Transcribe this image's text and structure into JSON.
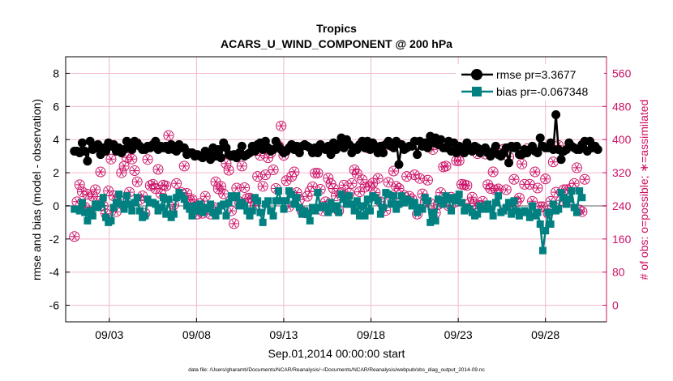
{
  "chart_data": {
    "type": "line",
    "title": "Tropics",
    "subtitle": "ACARS_U_WIND_COMPONENT @ 200 hPa",
    "xlabel": "Sep.01,2014 00:00:00 start",
    "ylabel_left": "rmse and bias (model - observation)",
    "ylabel_right": "# of obs: o=possible; ∗=assimilated",
    "footer": "data file: /Users/gharamti/Documents/NCAR/Reanalysis/~/Documents/NCAR/Reanalysis/webpub/obs_diag_output_2014-09.nc",
    "xlim": [
      0.5,
      31.5
    ],
    "x_ticks": [
      3,
      8,
      13,
      18,
      23,
      28
    ],
    "x_tick_labels": [
      "09/03",
      "09/08",
      "09/13",
      "09/18",
      "09/23",
      "09/28"
    ],
    "ylim_left": [
      -7,
      9
    ],
    "y_ticks_left": [
      -6,
      -4,
      -2,
      0,
      2,
      4,
      6,
      8
    ],
    "ylim_right": [
      -40,
      600
    ],
    "y_ticks_right": [
      0,
      80,
      160,
      240,
      320,
      400,
      480,
      560
    ],
    "legend": [
      {
        "label": "rmse pr=3.3677",
        "color": "#000000"
      },
      {
        "label": "bias pr=-0.067348",
        "color": "#008080"
      }
    ],
    "colors": {
      "rmse": "#000000",
      "bias": "#008080",
      "obs": "#cc1166",
      "grid": "#f0b8cc",
      "zero": "#b0b0b0"
    },
    "series": [
      {
        "name": "rmse",
        "axis": "left",
        "values": [
          3.3,
          3.3,
          3.2,
          3.8,
          3.3,
          2.7,
          3.9,
          3.4,
          3.5,
          3.7,
          3.1,
          3.5,
          3.3,
          3.8,
          3.6,
          3.7,
          3.3,
          3.5,
          3.2,
          3.4,
          3.9,
          3.6,
          3.4,
          3.9,
          3.8,
          3.6,
          3.4,
          3.4,
          3.6,
          3.5,
          3.7,
          3.9,
          3.4,
          3.6,
          3.5,
          3.6,
          3.4,
          3.7,
          3.4,
          3.3,
          3.7,
          3.5,
          3.5,
          3.1,
          3.2,
          3.2,
          3.0,
          3.1,
          3.0,
          2.9,
          3.3,
          3.1,
          2.8,
          3.5,
          3.0,
          3.4,
          2.9,
          3.8,
          3.5,
          3.1,
          3.0,
          3.1,
          2.9,
          3.2,
          3.6,
          3.0,
          3.1,
          3.2,
          3.6,
          3.3,
          3.7,
          3.8,
          3.4,
          3.9,
          3.5,
          3.3,
          3.4,
          3.9,
          3.6,
          3.4,
          3.2,
          3.3,
          3.5,
          3.7,
          3.4,
          3.6,
          3.2,
          3.6,
          3.7,
          3.6,
          3.5,
          3.2,
          3.5,
          3.2,
          3.7,
          3.5,
          3.4,
          3.6,
          3.1,
          3.8,
          3.4,
          3.7,
          4.1,
          3.5,
          4.0,
          3.7,
          3.2,
          3.5,
          3.4,
          3.7,
          3.9,
          3.5,
          3.9,
          3.4,
          3.8,
          3.6,
          3.2,
          3.6,
          3.2,
          3.7,
          3.9,
          3.6,
          3.5,
          3.9,
          2.5,
          3.7,
          3.4,
          3.5,
          3.6,
          3.6,
          3.9,
          3.1,
          3.9,
          3.6,
          3.8,
          3.5,
          4.2,
          3.8,
          4.1,
          3.7,
          4.0,
          3.5,
          3.5,
          3.9,
          3.3,
          3.8,
          3.2,
          3.6,
          3.4,
          3.2,
          3.8,
          3.5,
          3.3,
          3.6,
          3.5,
          3.2,
          3.4,
          3.5,
          3.2,
          3.0,
          3.3,
          3.6,
          3.1,
          3.0,
          3.2,
          3.5,
          2.6,
          3.6,
          3.5,
          3.6,
          3.1,
          3.1,
          3.4,
          3.2,
          3.4,
          3.6,
          3.3,
          3.2,
          4.1,
          3.6,
          3.5,
          3.5,
          3.8,
          3.4,
          5.5,
          3.4,
          2.8,
          3.3,
          3.4,
          3.8,
          3.6,
          3.5,
          3.4,
          3.4,
          3.7,
          3.9,
          3.3,
          3.9,
          3.5,
          3.6,
          3.4
        ]
      },
      {
        "name": "bias",
        "axis": "left",
        "values": [
          -0.2,
          -0.2,
          -0.3,
          0.2,
          -0.4,
          -0.9,
          -0.3,
          -0.6,
          0.1,
          -0.1,
          0.1,
          0.5,
          -0.7,
          -1.0,
          -0.9,
          -0.1,
          0.2,
          0.7,
          0.1,
          -0.2,
          0.6,
          0.1,
          -0.3,
          0.2,
          0.5,
          -0.3,
          -0.7,
          -0.6,
          0.4,
          0.2,
          0.2,
          0.1,
          -0.3,
          -0.1,
          0.5,
          -0.5,
          0.4,
          -0.7,
          -0.5,
          0.5,
          0.8,
          0.6,
          0.4,
          0.0,
          -0.2,
          -0.6,
          0.0,
          -0.3,
          0.1,
          -0.4,
          -0.1,
          -0.2,
          0.1,
          -0.4,
          -0.6,
          -0.3,
          0.0,
          0.1,
          -0.6,
          0.2,
          0.6,
          0.5,
          0.6,
          0.0,
          0.2,
          0.0,
          -0.3,
          -0.6,
          -0.3,
          0.5,
          0.3,
          -0.4,
          -1.0,
          0.1,
          0.3,
          -0.3,
          -0.6,
          0.3,
          0.9,
          0.3,
          -0.2,
          0.3,
          0.9,
          0.7,
          0.1,
          0.5,
          -0.1,
          -0.5,
          -0.3,
          -0.5,
          -0.9,
          -0.1,
          -0.3,
          0.8,
          -0.1,
          0.0,
          -0.1,
          -0.4,
          0.2,
          -0.2,
          0.0,
          -0.4,
          0.7,
          0.4,
          0.1,
          0.6,
          0.1,
          -0.3,
          0.3,
          -0.6,
          0.0,
          -0.6,
          0.4,
          -0.3,
          0.6,
          0.5,
          0.3,
          -0.5,
          -0.1,
          0.8,
          0.7,
          0.1,
          0.6,
          -0.2,
          0.1,
          0.6,
          0.2,
          0.4,
          0.3,
          0.0,
          0.2,
          -0.4,
          -0.1,
          -0.2,
          0.5,
          0.3,
          -1.0,
          -0.4,
          -0.9,
          0.4,
          0.3,
          0.1,
          0.6,
          0.4,
          -0.3,
          0.5,
          0.3,
          0.7,
          0.2,
          -0.3,
          -0.1,
          -0.2,
          -0.4,
          -0.6,
          -0.5,
          0.0,
          -0.2,
          -0.2,
          0.1,
          -0.2,
          -0.6,
          0.2,
          0.6,
          -0.4,
          -0.3,
          -0.1,
          0.2,
          -0.5,
          0.3,
          -0.3,
          -0.6,
          -0.4,
          -0.3,
          -0.4,
          -0.7,
          0.0,
          -0.6,
          -0.4,
          -1.1,
          -2.7,
          -1.5,
          -0.4,
          -1.1,
          0.1,
          -0.3,
          -0.2,
          0.8,
          0.5,
          0.1,
          0.4,
          0.9,
          -0.1,
          -0.4,
          0.9,
          0.5
        ]
      },
      {
        "name": "obs_possible",
        "axis": "right",
        "values": [
          166,
          250,
          291,
          274,
          237,
          268,
          226,
          263,
          279,
          251,
          322,
          240,
          221,
          276,
          353,
          264,
          226,
          256,
          320,
          336,
          357,
          273,
          353,
          325,
          298,
          255,
          264,
          222,
          352,
          289,
          292,
          282,
          328,
          270,
          290,
          288,
          410,
          227,
          243,
          294,
          381,
          272,
          336,
          270,
          254,
          255,
          238,
          220,
          246,
          222,
          263,
          232,
          220,
          237,
          298,
          281,
          287,
          269,
          342,
          326,
          228,
          197,
          283,
          250,
          336,
          284,
          258,
          259,
          256,
          241,
          311,
          362,
          287,
          315,
          356,
          368,
          327,
          282,
          385,
          433,
          362,
          301,
          238,
          311,
          322,
          272,
          255,
          227,
          223,
          263,
          275,
          286,
          319,
          319,
          280,
          228,
          250,
          307,
          293,
          282,
          264,
          228,
          272,
          290,
          262,
          270,
          294,
          327,
          318,
          274,
          303,
          285,
          380,
          287,
          295,
          272,
          306,
          250,
          383,
          229,
          297,
          262,
          324,
          287,
          282,
          251,
          265,
          311,
          263,
          256,
          315,
          220,
          306,
          269,
          249,
          302,
          246,
          376,
          223,
          243,
          272,
          334,
          336,
          240,
          261,
          248,
          349,
          349,
          292,
          291,
          289,
          246,
          261,
          245,
          366,
          241,
          251,
          365,
          291,
          282,
          322,
          278,
          281,
          366,
          377,
          279,
          358,
          239,
          304,
          250,
          259,
          341,
          292,
          378,
          292,
          251,
          322,
          283,
          238,
          238,
          305,
          222,
          251,
          346,
          273,
          386,
          253,
          279,
          279,
          249,
          283,
          294,
          332,
          230,
          226,
          304
        ]
      },
      {
        "name": "obs_assimilated",
        "axis": "right",
        "values": [
          166,
          250,
          291,
          274,
          237,
          268,
          226,
          263,
          279,
          251,
          322,
          240,
          221,
          276,
          353,
          264,
          226,
          256,
          320,
          336,
          357,
          273,
          353,
          325,
          298,
          255,
          264,
          222,
          352,
          289,
          292,
          282,
          328,
          270,
          290,
          288,
          410,
          227,
          243,
          294,
          381,
          272,
          336,
          270,
          254,
          255,
          238,
          220,
          246,
          222,
          263,
          232,
          220,
          237,
          298,
          281,
          287,
          269,
          342,
          326,
          228,
          197,
          283,
          250,
          336,
          284,
          258,
          259,
          256,
          241,
          311,
          362,
          287,
          315,
          356,
          368,
          327,
          282,
          385,
          433,
          362,
          301,
          238,
          311,
          322,
          272,
          255,
          227,
          223,
          263,
          275,
          286,
          319,
          319,
          280,
          228,
          250,
          307,
          293,
          282,
          264,
          228,
          272,
          290,
          262,
          270,
          294,
          327,
          318,
          274,
          303,
          285,
          380,
          287,
          295,
          272,
          306,
          250,
          383,
          229,
          297,
          262,
          324,
          287,
          282,
          251,
          265,
          311,
          263,
          256,
          315,
          220,
          306,
          269,
          249,
          302,
          246,
          376,
          223,
          243,
          272,
          334,
          336,
          240,
          261,
          248,
          349,
          349,
          292,
          291,
          289,
          246,
          261,
          245,
          366,
          241,
          251,
          365,
          291,
          282,
          322,
          278,
          281,
          366,
          377,
          279,
          358,
          239,
          304,
          250,
          259,
          341,
          292,
          378,
          292,
          251,
          322,
          283,
          238,
          238,
          305,
          222,
          251,
          346,
          273,
          386,
          253,
          279,
          279,
          249,
          283,
          294,
          332,
          230,
          226,
          304
        ]
      }
    ]
  }
}
